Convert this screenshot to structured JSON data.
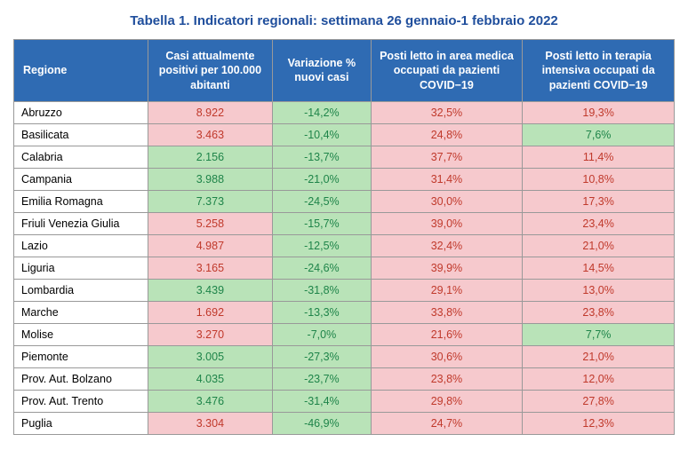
{
  "title": "Tabella 1. Indicatori regionali: settimana 26 gennaio-1 febbraio 2022",
  "title_color": "#1f4e9c",
  "header_bg": "#2f6bb3",
  "header_fg": "#ffffff",
  "cell_red_bg": "#f6c9cd",
  "cell_green_bg": "#b9e3b8",
  "cell_red_fg": "#c0392b",
  "cell_green_fg": "#1e8449",
  "border_color": "#999999",
  "columns": [
    "Regione",
    "Casi attualmente positivi per 100.000 abitanti",
    "Variazione % nuovi casi",
    "Posti letto in area medica occupati da pazienti COVID−19",
    "Posti letto in terapia intensiva occupati da pazienti COVID−19"
  ],
  "rows": [
    {
      "region": "Abruzzo",
      "cells": [
        {
          "v": "8.922",
          "c": "red"
        },
        {
          "v": "-14,2%",
          "c": "green"
        },
        {
          "v": "32,5%",
          "c": "red"
        },
        {
          "v": "19,3%",
          "c": "red"
        }
      ]
    },
    {
      "region": "Basilicata",
      "cells": [
        {
          "v": "3.463",
          "c": "red"
        },
        {
          "v": "-10,4%",
          "c": "green"
        },
        {
          "v": "24,8%",
          "c": "red"
        },
        {
          "v": "7,6%",
          "c": "green"
        }
      ]
    },
    {
      "region": "Calabria",
      "cells": [
        {
          "v": "2.156",
          "c": "green"
        },
        {
          "v": "-13,7%",
          "c": "green"
        },
        {
          "v": "37,7%",
          "c": "red"
        },
        {
          "v": "11,4%",
          "c": "red"
        }
      ]
    },
    {
      "region": "Campania",
      "cells": [
        {
          "v": "3.988",
          "c": "green"
        },
        {
          "v": "-21,0%",
          "c": "green"
        },
        {
          "v": "31,4%",
          "c": "red"
        },
        {
          "v": "10,8%",
          "c": "red"
        }
      ]
    },
    {
      "region": "Emilia Romagna",
      "cells": [
        {
          "v": "7.373",
          "c": "green"
        },
        {
          "v": "-24,5%",
          "c": "green"
        },
        {
          "v": "30,0%",
          "c": "red"
        },
        {
          "v": "17,3%",
          "c": "red"
        }
      ]
    },
    {
      "region": "Friuli Venezia Giulia",
      "cells": [
        {
          "v": "5.258",
          "c": "red"
        },
        {
          "v": "-15,7%",
          "c": "green"
        },
        {
          "v": "39,0%",
          "c": "red"
        },
        {
          "v": "23,4%",
          "c": "red"
        }
      ]
    },
    {
      "region": "Lazio",
      "cells": [
        {
          "v": "4.987",
          "c": "red"
        },
        {
          "v": "-12,5%",
          "c": "green"
        },
        {
          "v": "32,4%",
          "c": "red"
        },
        {
          "v": "21,0%",
          "c": "red"
        }
      ]
    },
    {
      "region": "Liguria",
      "cells": [
        {
          "v": "3.165",
          "c": "red"
        },
        {
          "v": "-24,6%",
          "c": "green"
        },
        {
          "v": "39,9%",
          "c": "red"
        },
        {
          "v": "14,5%",
          "c": "red"
        }
      ]
    },
    {
      "region": "Lombardia",
      "cells": [
        {
          "v": "3.439",
          "c": "green"
        },
        {
          "v": "-31,8%",
          "c": "green"
        },
        {
          "v": "29,1%",
          "c": "red"
        },
        {
          "v": "13,0%",
          "c": "red"
        }
      ]
    },
    {
      "region": "Marche",
      "cells": [
        {
          "v": "1.692",
          "c": "red"
        },
        {
          "v": "-13,3%",
          "c": "green"
        },
        {
          "v": "33,8%",
          "c": "red"
        },
        {
          "v": "23,8%",
          "c": "red"
        }
      ]
    },
    {
      "region": "Molise",
      "cells": [
        {
          "v": "3.270",
          "c": "red"
        },
        {
          "v": "-7,0%",
          "c": "green"
        },
        {
          "v": "21,6%",
          "c": "red"
        },
        {
          "v": "7,7%",
          "c": "green"
        }
      ]
    },
    {
      "region": "Piemonte",
      "cells": [
        {
          "v": "3.005",
          "c": "green"
        },
        {
          "v": "-27,3%",
          "c": "green"
        },
        {
          "v": "30,6%",
          "c": "red"
        },
        {
          "v": "21,0%",
          "c": "red"
        }
      ]
    },
    {
      "region": "Prov. Aut. Bolzano",
      "cells": [
        {
          "v": "4.035",
          "c": "green"
        },
        {
          "v": "-23,7%",
          "c": "green"
        },
        {
          "v": "23,8%",
          "c": "red"
        },
        {
          "v": "12,0%",
          "c": "red"
        }
      ]
    },
    {
      "region": "Prov. Aut. Trento",
      "cells": [
        {
          "v": "3.476",
          "c": "green"
        },
        {
          "v": "-31,4%",
          "c": "green"
        },
        {
          "v": "29,8%",
          "c": "red"
        },
        {
          "v": "27,8%",
          "c": "red"
        }
      ]
    },
    {
      "region": "Puglia",
      "cells": [
        {
          "v": "3.304",
          "c": "red"
        },
        {
          "v": "-46,9%",
          "c": "green"
        },
        {
          "v": "24,7%",
          "c": "red"
        },
        {
          "v": "12,3%",
          "c": "red"
        }
      ]
    }
  ]
}
